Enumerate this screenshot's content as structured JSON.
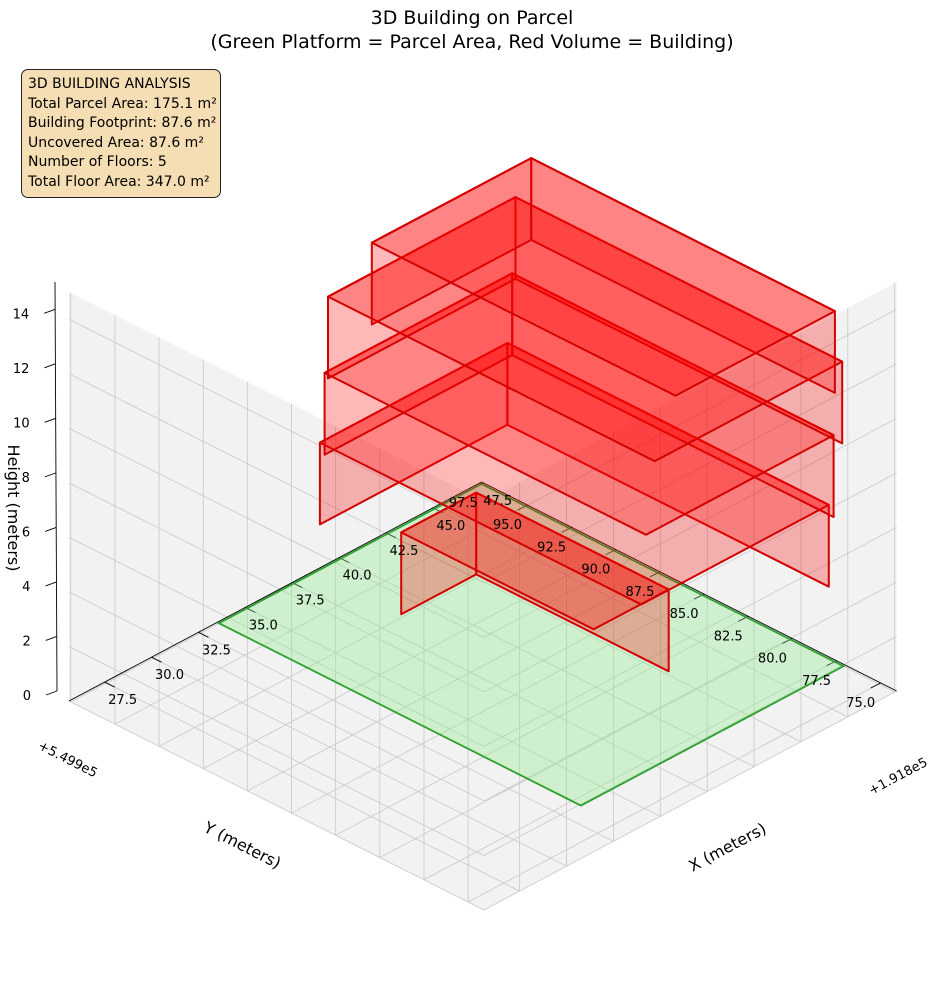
{
  "title": {
    "line1": "3D Building on Parcel",
    "line2": "(Green Platform = Parcel Area, Red Volume = Building)"
  },
  "info_box": {
    "heading": "3D BUILDING ANALYSIS",
    "lines": [
      "Total Parcel Area: 175.1 m²",
      "Building Footprint: 87.6 m²",
      "Uncovered Area: 87.6 m²",
      "Number of Floors: 5",
      "Total Floor Area: 347.0 m²"
    ]
  },
  "colors": {
    "parcel_fill": "#90ee90",
    "parcel_edge": "#2ca02c",
    "building_fill": "#ff0000",
    "building_edge": "#d40000",
    "pane": "#f2f2f2",
    "grid": "#c8c8c8"
  },
  "chart_data": {
    "type": "3d-volume",
    "title": "3D Building on Parcel (Green Platform = Parcel Area, Red Volume = Building)",
    "xlabel": "X (meters)",
    "ylabel": "Y (meters)",
    "zlabel": "Height (meters)",
    "x_offset_label": "+1.918e5",
    "y_offset_label": "+5.499e5",
    "x_ticks": [
      "27.5",
      "30.0",
      "32.5",
      "35.0",
      "37.5",
      "40.0",
      "42.5",
      "45.0",
      "47.5"
    ],
    "y_ticks": [
      "75.0",
      "77.5",
      "80.0",
      "82.5",
      "85.0",
      "87.5",
      "90.0",
      "92.5",
      "95.0",
      "97.5"
    ],
    "z_ticks": [
      "0",
      "2",
      "4",
      "6",
      "8",
      "10",
      "12",
      "14"
    ],
    "xlim": [
      25.6,
      47.6
    ],
    "ylim": [
      74.1,
      97.6
    ],
    "zlim": [
      0,
      15
    ],
    "grid": true,
    "parcel": {
      "x": [
        33.5,
        47.5
      ],
      "y": [
        77.0,
        97.5
      ],
      "z": 0
    },
    "floors": [
      {
        "floor": 1,
        "x": [
          38.7,
          42.7
        ],
        "y": [
          81.8,
          92.7
        ],
        "z": [
          0,
          3
        ]
      },
      {
        "floor": 2,
        "x": [
          37.0,
          47.0
        ],
        "y": [
          77.3,
          95.5
        ],
        "z": [
          3,
          6
        ]
      },
      {
        "floor": 3,
        "x": [
          36.5,
          46.5
        ],
        "y": [
          76.5,
          94.7
        ],
        "z": [
          6,
          9
        ]
      },
      {
        "floor": 4,
        "x": [
          36.3,
          46.3
        ],
        "y": [
          75.8,
          94.3
        ],
        "z": [
          9,
          12
        ]
      },
      {
        "floor": 5,
        "x": [
          36.0,
          44.5
        ],
        "y": [
          74.3,
          91.5
        ],
        "z": [
          12,
          15
        ]
      }
    ]
  }
}
